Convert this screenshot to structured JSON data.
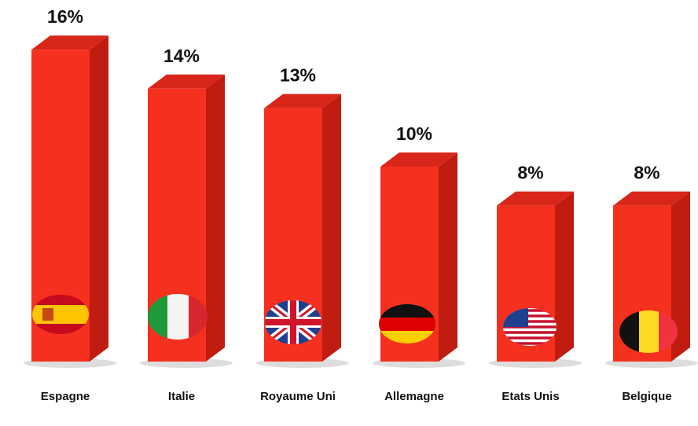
{
  "chart_data": {
    "type": "bar3d",
    "categories": [
      "Espagne",
      "Italie",
      "Royaume Uni",
      "Allemagne",
      "Etats Unis",
      "Belgique"
    ],
    "values": [
      16,
      14,
      13,
      10,
      8,
      8
    ],
    "value_labels": [
      "16%",
      "14%",
      "13%",
      "10%",
      "8%",
      "8%"
    ],
    "color": "#f6301f"
  }
}
